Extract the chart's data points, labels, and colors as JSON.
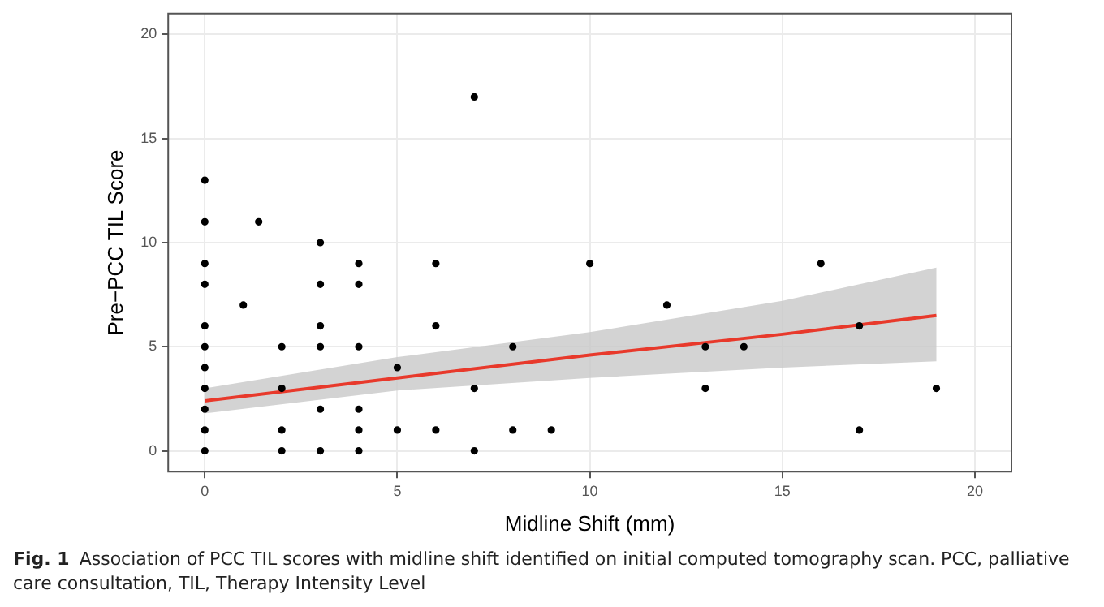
{
  "chart_data": {
    "type": "scatter",
    "xlabel": "Midline Shift (mm)",
    "ylabel": "Pre−PCC TIL Score",
    "xlim": [
      -0.95,
      20.95
    ],
    "xticks": [
      0,
      5,
      10,
      15,
      20
    ],
    "ylim": [
      -1,
      21
    ],
    "yticks": [
      0,
      5,
      10,
      15,
      20
    ],
    "grid": true,
    "legend": false,
    "marker": "circle",
    "series": [
      {
        "color": "#000000",
        "x": [
          0,
          0,
          0,
          0,
          0,
          0,
          0,
          0,
          0,
          0,
          0,
          1,
          1.4,
          2,
          2,
          2,
          2,
          3,
          3,
          3,
          3,
          3,
          3,
          4,
          4,
          4,
          4,
          4,
          4,
          5,
          5,
          6,
          6,
          6,
          7,
          7,
          7,
          8,
          8,
          9,
          10,
          12,
          13,
          13,
          14,
          16,
          17,
          17,
          19
        ],
        "values": [
          13,
          11,
          9,
          8,
          6,
          5,
          4,
          3,
          2,
          1,
          0,
          7,
          11,
          5,
          3,
          1,
          0,
          10,
          8,
          6,
          5,
          2,
          0,
          9,
          8,
          5,
          2,
          1,
          0,
          4,
          1,
          9,
          6,
          1,
          17,
          3,
          0,
          5,
          1,
          1,
          9,
          7,
          5,
          3,
          5,
          9,
          6,
          1,
          3
        ]
      },
      {
        "type": "line",
        "color": "#e8392b",
        "marker": "none",
        "x": [
          0,
          5,
          10,
          15,
          19
        ],
        "values": [
          2.4,
          3.5,
          4.6,
          5.6,
          6.5
        ],
        "lower": [
          1.8,
          2.9,
          3.5,
          4.0,
          4.3
        ],
        "upper": [
          3.0,
          4.5,
          5.7,
          7.2,
          8.8
        ]
      }
    ],
    "annotations": [
      "Fig. 1",
      "Association of PCC TIL scores with midline shift identified on initial computed tomography scan. PCC, palliative care consultation, TIL, Therapy Intensity Level"
    ]
  }
}
